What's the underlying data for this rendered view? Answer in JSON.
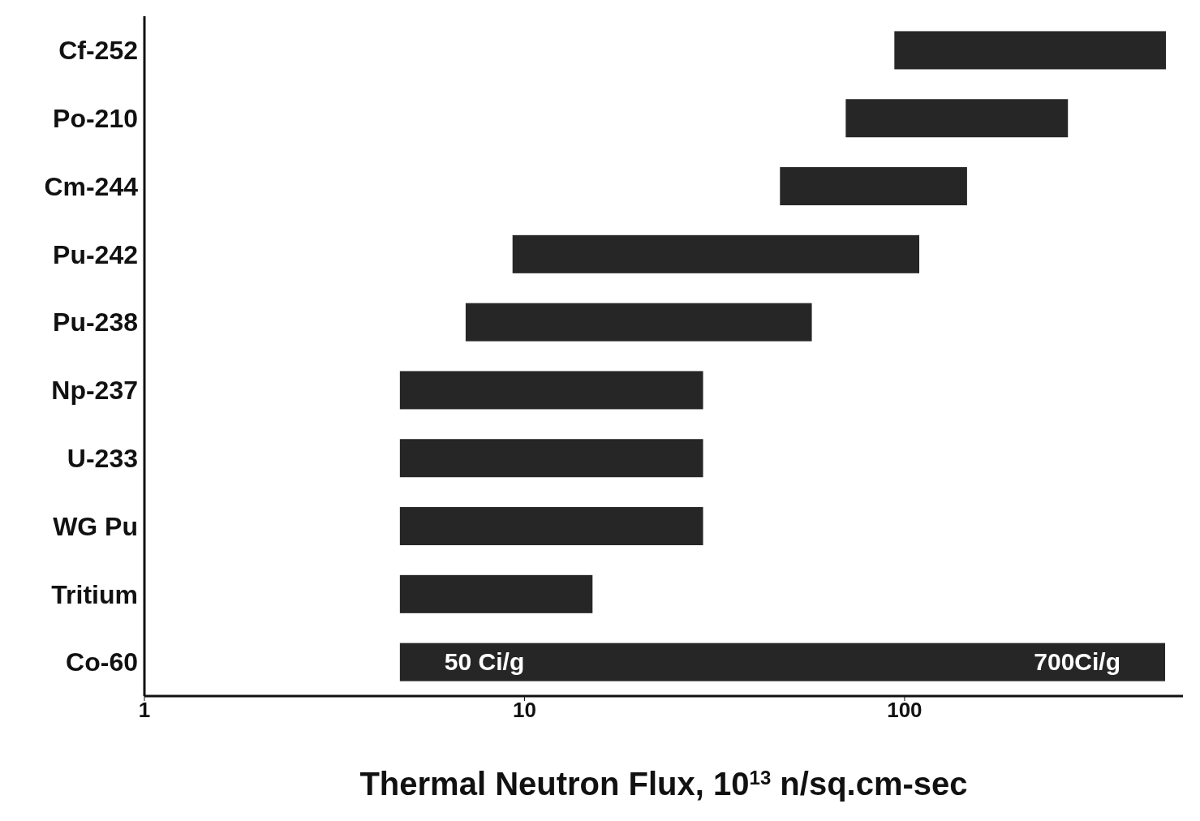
{
  "chart_data": {
    "type": "bar",
    "orientation": "horizontal",
    "xlabel": "Thermal Neutron Flux, 10$^{13}$ n/sq.cm-sec",
    "categories": [
      "Cf-252",
      "Po-210",
      "Cm-244",
      "Pu-242",
      "Pu-238",
      "Np-237",
      "U-233",
      "WG Pu",
      "Tritium",
      "Co-60"
    ],
    "base": [
      94,
      70,
      47,
      9.3,
      7,
      4.7,
      4.7,
      4.7,
      4.7,
      4.7
    ],
    "values": [
      393,
      199,
      99,
      100,
      50,
      24.8,
      24.8,
      24.8,
      10.4,
      480
    ],
    "color": "#262626",
    "log": "x",
    "xlim": [
      1,
      540
    ],
    "xticks": [
      1,
      10,
      100
    ],
    "annotations": [
      "50 Ci/g",
      "700Ci/g"
    ]
  }
}
